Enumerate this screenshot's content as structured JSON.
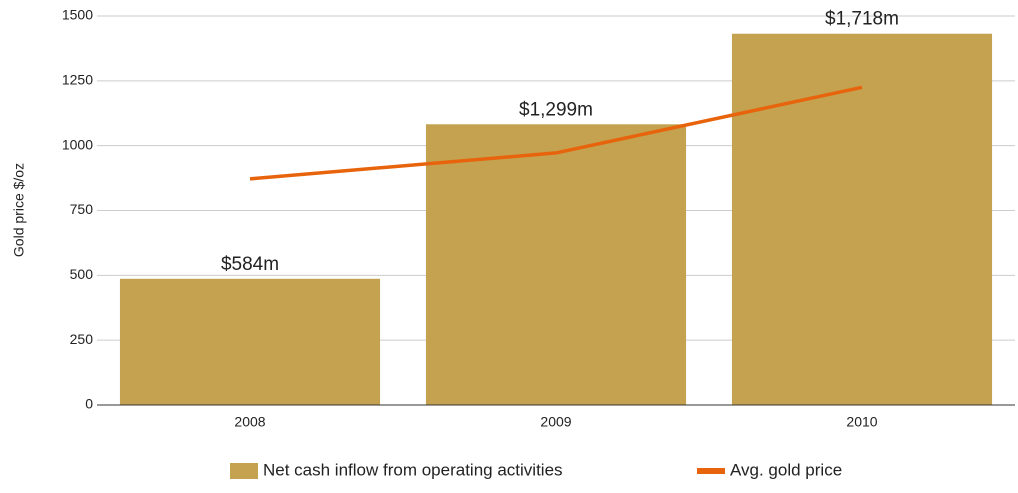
{
  "chart_data": {
    "type": "bar-line",
    "y_label": "Gold price $/oz",
    "categories": [
      "2008",
      "2009",
      "2010"
    ],
    "series": [
      {
        "name": "Net cash inflow from operating activities",
        "type": "bar",
        "color": "#c4a24f",
        "axis": "y2",
        "values": [
          584,
          1299,
          1718
        ],
        "value_labels": [
          "$584m",
          "$1,299m",
          "$1,718m"
        ]
      },
      {
        "name": "Avg. gold price",
        "type": "line",
        "color": "#e8640c",
        "values": [
          872,
          972,
          1225
        ]
      }
    ],
    "ylim": [
      0,
      1500
    ],
    "yticks": [
      0,
      250,
      500,
      750,
      1000,
      1250,
      1500
    ],
    "y2lim": [
      0,
      1800
    ],
    "grid": true,
    "legend": "bottom"
  }
}
